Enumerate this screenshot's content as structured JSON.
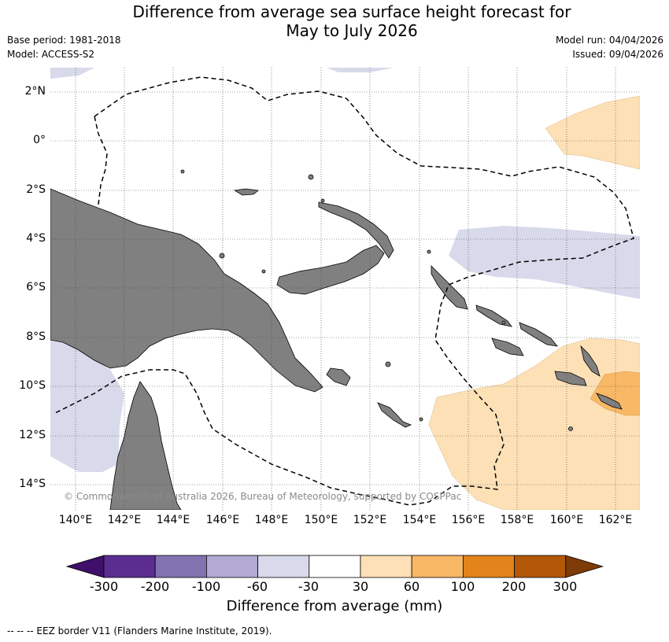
{
  "title": {
    "line1": "Difference from average sea surface height forecast for",
    "line2": "May to July 2026"
  },
  "meta": {
    "base_period": "Base period: 1981-2018",
    "model": "Model: ACCESS-S2",
    "model_run": "Model run: 04/04/2026",
    "issued": "Issued: 09/04/2026"
  },
  "axes": {
    "lat_labels": [
      "2°N",
      "0°",
      "2°S",
      "4°S",
      "6°S",
      "8°S",
      "10°S",
      "12°S",
      "14°S"
    ],
    "lon_labels": [
      "140°E",
      "142°E",
      "144°E",
      "146°E",
      "148°E",
      "150°E",
      "152°E",
      "154°E",
      "156°E",
      "158°E",
      "160°E",
      "162°E"
    ]
  },
  "copyright": "© Commonwealth of Australia 2026, Bureau of Meteorology, supported by COSPPac",
  "colorbar": {
    "colors": [
      "#3f0f6a",
      "#5c2d91",
      "#8273b0",
      "#b2aad3",
      "#d8d9ea",
      "#ffffff",
      "#fde0b6",
      "#f9b865",
      "#e2841b",
      "#b35806",
      "#7f3b08"
    ],
    "tick_labels": [
      "-300",
      "-200",
      "-100",
      "-60",
      "-30",
      "30",
      "60",
      "100",
      "200",
      "300"
    ],
    "title": "Difference from average (mm)"
  },
  "legend_note": "--  --  -- EEZ border V11 (Flanders Marine Institute, 2019).",
  "colors": {
    "land": "#808080",
    "negative_anomaly": "#d8d9ea",
    "positive_light": "#fde0b6",
    "positive_medium": "#f9b865"
  }
}
